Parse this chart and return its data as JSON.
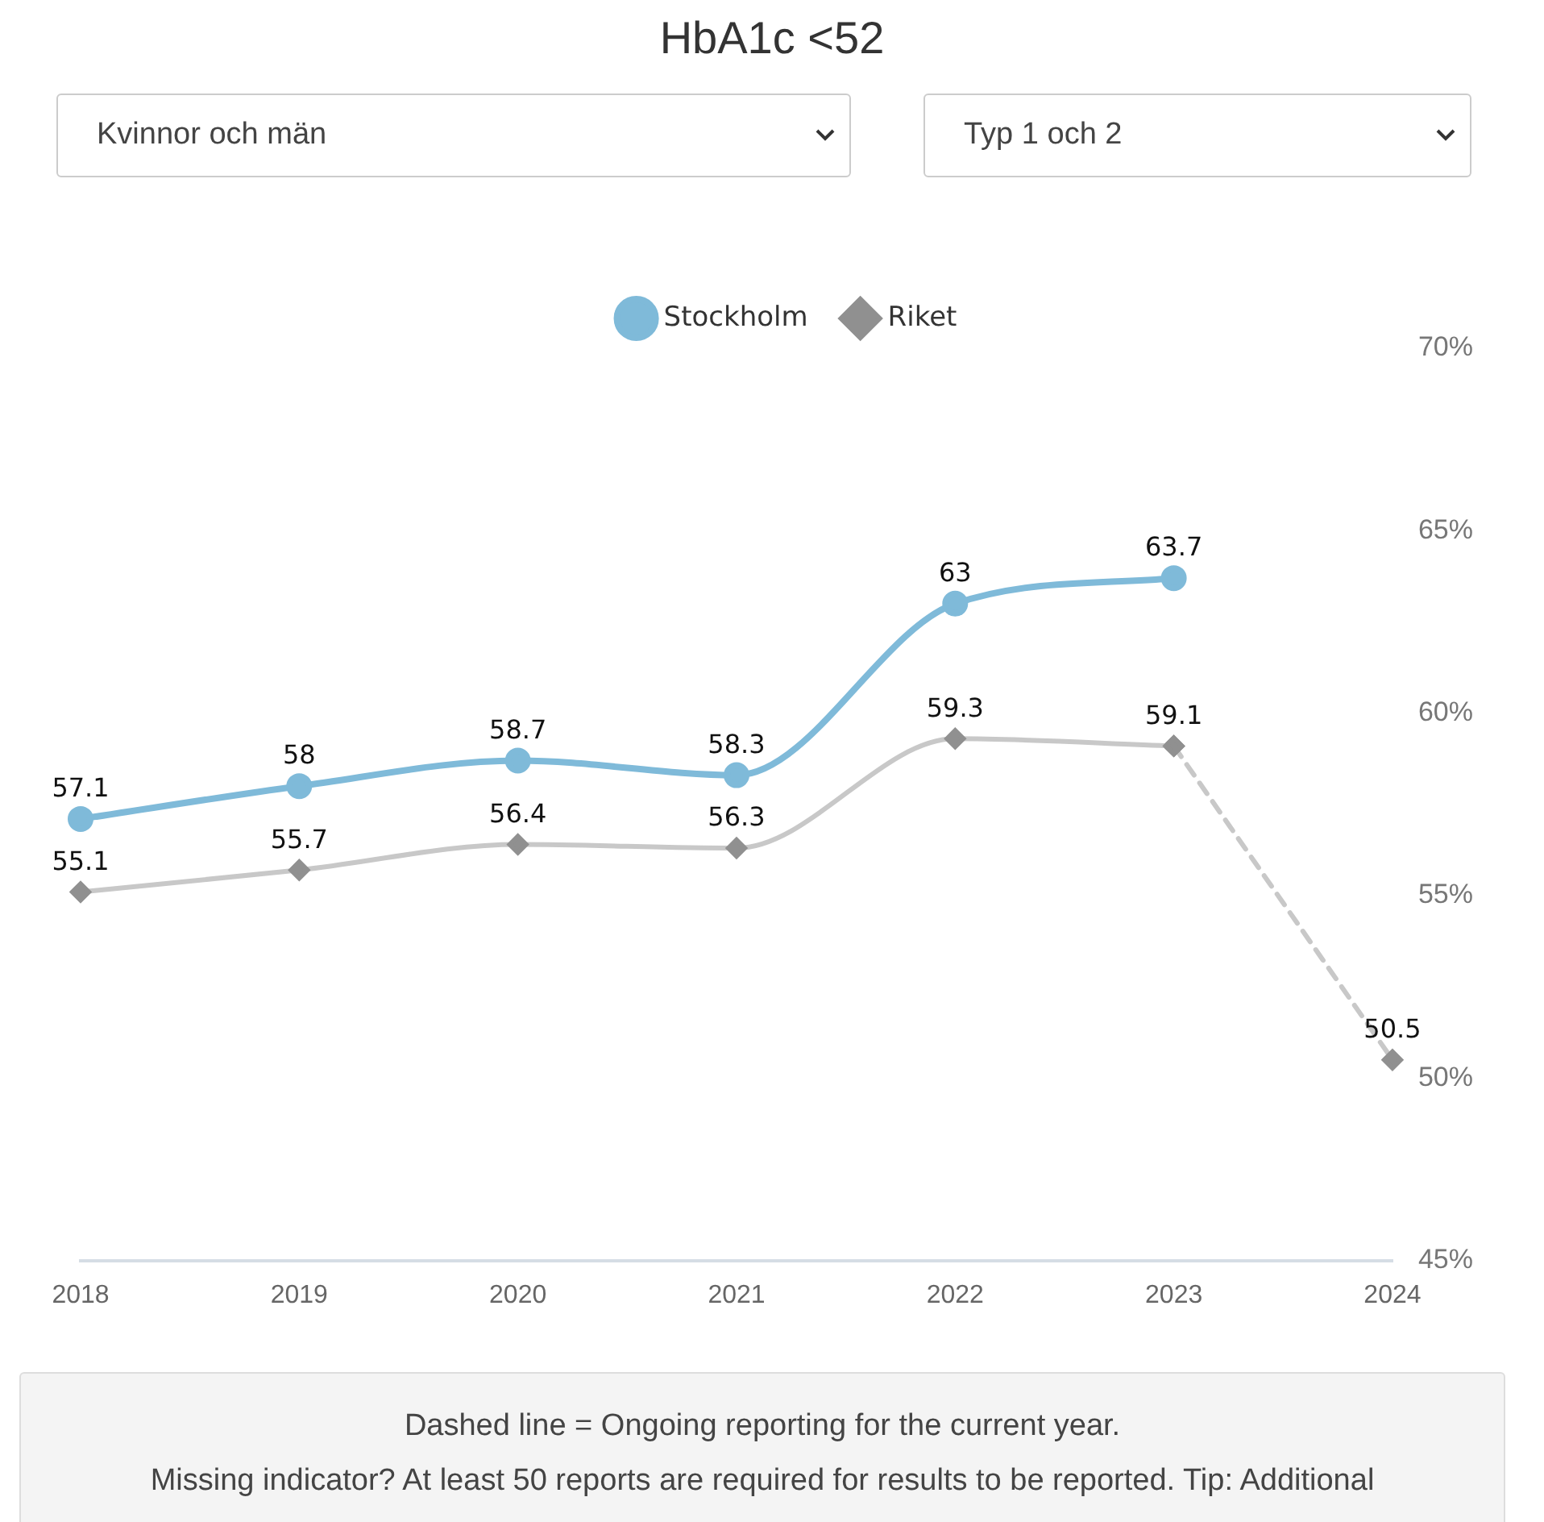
{
  "chart_data": {
    "type": "line",
    "title": "HbA1c <52",
    "categories": [
      "2018",
      "2019",
      "2020",
      "2021",
      "2022",
      "2023",
      "2024"
    ],
    "series": [
      {
        "name": "Stockholm",
        "color": "#7fbad9",
        "marker": "circle",
        "values": [
          57.1,
          58,
          58.7,
          58.3,
          63,
          63.7,
          null
        ],
        "value_labels": [
          "57.1",
          "58",
          "58.7",
          "58.3",
          "63",
          "63.7",
          null
        ]
      },
      {
        "name": "Riket",
        "color": "#c8c8c8",
        "marker": "diamond",
        "values": [
          55.1,
          55.7,
          56.4,
          56.3,
          59.3,
          59.1,
          null
        ],
        "value_labels": [
          "55.1",
          "55.7",
          "56.4",
          "56.3",
          "59.3",
          "59.1",
          null
        ]
      },
      {
        "color": "#c8c8c8",
        "marker": "diamond",
        "line_style": "dashed",
        "values": [
          null,
          null,
          null,
          null,
          null,
          59.1,
          50.5
        ],
        "value_labels": [
          null,
          null,
          null,
          null,
          null,
          null,
          "50.5"
        ]
      }
    ],
    "ylim": [
      45,
      70
    ],
    "yticks": [
      {
        "value": 45,
        "label": "45%"
      },
      {
        "value": 50,
        "label": "50%"
      },
      {
        "value": 55,
        "label": "55%"
      },
      {
        "value": 60,
        "label": "60%"
      },
      {
        "value": 65,
        "label": "65%"
      },
      {
        "value": 70,
        "label": "70%"
      }
    ],
    "grid": false,
    "legend": "top",
    "annotations": [
      "Kvinnor och män",
      "Typ 1 och 2",
      "Dashed line = Ongoing reporting for the current year.",
      "Missing indicator? At least 50 reports are required for results to be reported. Tip: Additional"
    ]
  }
}
